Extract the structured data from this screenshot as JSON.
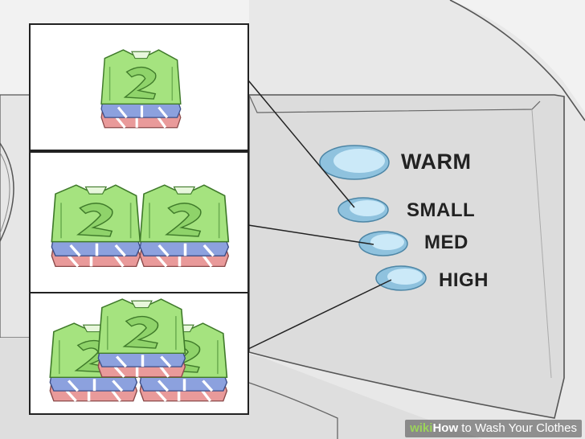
{
  "panel": {
    "buttons": [
      {
        "label": "WARM",
        "color": "#bfe4f5"
      },
      {
        "label": "SMALL",
        "color": "#bfe4f5"
      },
      {
        "label": "MED",
        "color": "#bfe4f5"
      },
      {
        "label": "HIGH",
        "color": "#bfe4f5"
      }
    ]
  },
  "insets": [
    {
      "name": "small-load",
      "shirt_count": 1
    },
    {
      "name": "medium-load",
      "shirt_count": 2
    },
    {
      "name": "large-load",
      "shirt_count": 3
    }
  ],
  "shirt_colors": {
    "top": "#9ee07a",
    "middle": "#7f96d6",
    "bottom": "#e99a9a"
  },
  "watermark": {
    "brand": "wiki",
    "bold_text": "How",
    "rest": " to Wash Your Clothes"
  }
}
